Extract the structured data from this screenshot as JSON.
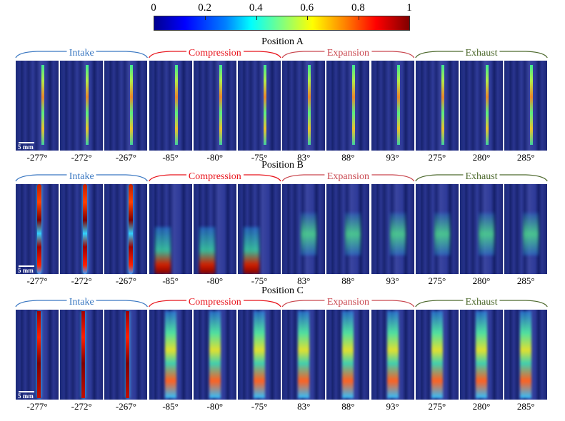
{
  "colorbar": {
    "ticks": [
      "0",
      "0.2",
      "0.4",
      "0.6",
      "0.8",
      "1"
    ],
    "range": [
      0,
      1
    ]
  },
  "scale_bar": "5 mm",
  "phase_colors": {
    "Intake": "#3b78c2",
    "Compression": "#e8141c",
    "Expansion": "#c9474f",
    "Exhaust": "#4e6a2e"
  },
  "positions": [
    {
      "title": "Position A",
      "phases": [
        "Intake",
        "Compression",
        "Expansion",
        "Exhaust"
      ],
      "angles": [
        "-277°",
        "-272°",
        "-267°",
        "-85°",
        "-80°",
        "-75°",
        "83°",
        "88°",
        "93°",
        "275°",
        "280°",
        "285°"
      ]
    },
    {
      "title": "Position B",
      "phases": [
        "Intake",
        "Compression",
        "Expansion",
        "Exhaust"
      ],
      "angles": [
        "-277°",
        "-272°",
        "-267°",
        "-85°",
        "-80°",
        "-75°",
        "83°",
        "88°",
        "93°",
        "275°",
        "280°",
        "285°"
      ]
    },
    {
      "title": "Position C",
      "phases": [
        "Intake",
        "Compression",
        "Expansion",
        "Exhaust"
      ],
      "angles": [
        "-277°",
        "-272°",
        "-267°",
        "-85°",
        "-80°",
        "-75°",
        "83°",
        "88°",
        "93°",
        "275°",
        "280°",
        "285°"
      ]
    }
  ]
}
